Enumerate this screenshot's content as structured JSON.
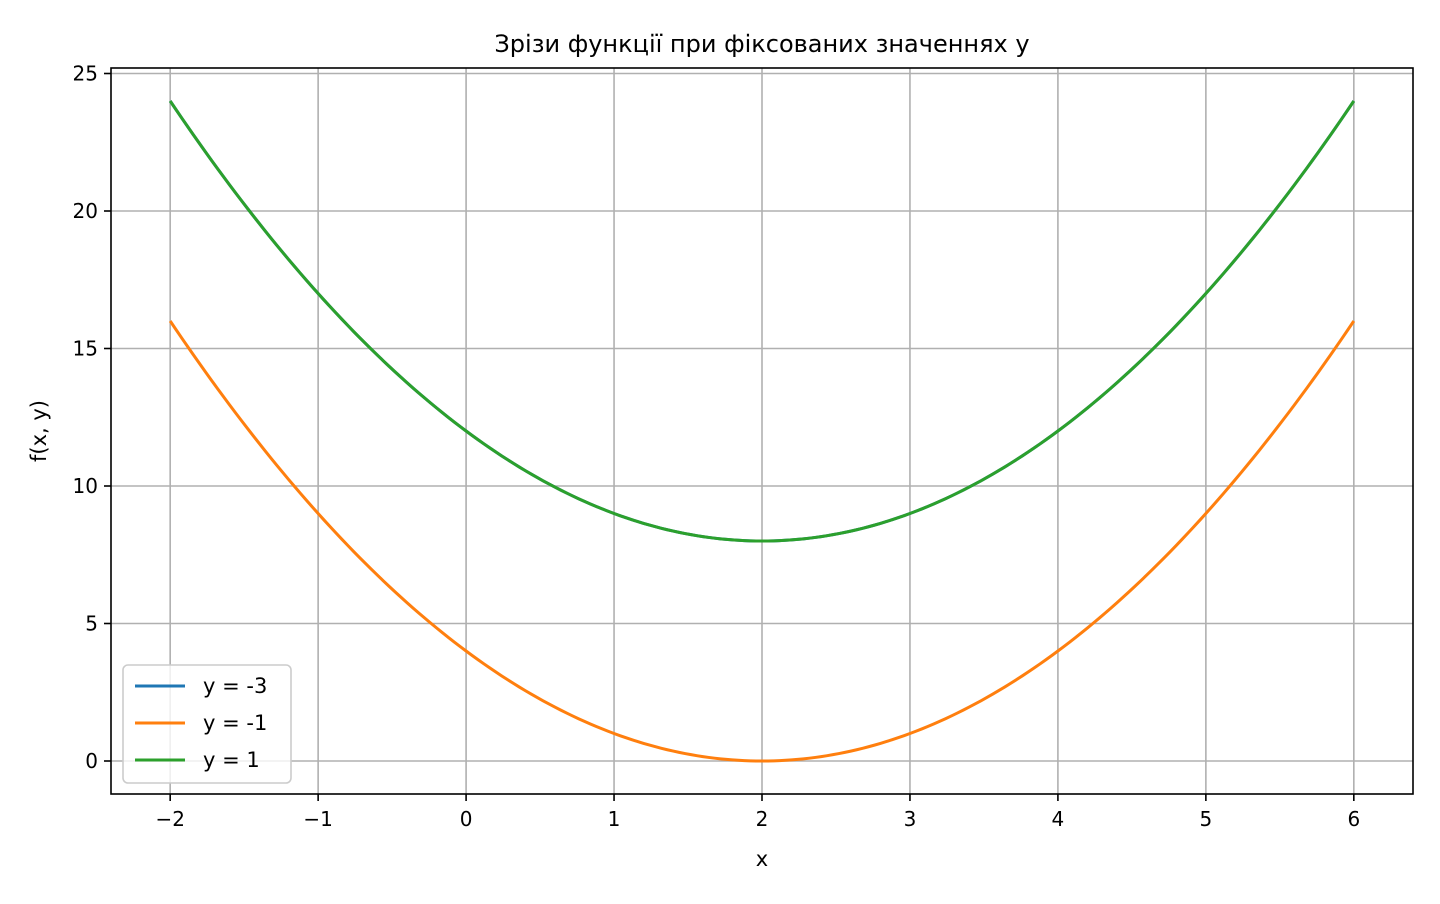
{
  "chart_data": {
    "type": "line",
    "title": "Зрізи функції при фіксованих значеннях y",
    "xlabel": "x",
    "ylabel": "f(x, y)",
    "xlim": [
      -2.4,
      6.4
    ],
    "ylim": [
      -1.2,
      25.2
    ],
    "grid": true,
    "legend_position": "lower-left",
    "x_ticks": [
      -2,
      -1,
      0,
      1,
      2,
      3,
      4,
      5,
      6
    ],
    "x_tick_labels": [
      "−2",
      "−1",
      "0",
      "1",
      "2",
      "3",
      "4",
      "5",
      "6"
    ],
    "y_ticks": [
      0,
      5,
      10,
      15,
      20,
      25
    ],
    "y_tick_labels": [
      "0",
      "5",
      "10",
      "15",
      "20",
      "25"
    ],
    "x": [
      -2,
      -1.5,
      -1,
      -0.5,
      0,
      0.5,
      1,
      1.5,
      2,
      2.5,
      3,
      3.5,
      4,
      4.5,
      5,
      5.5,
      6
    ],
    "series": [
      {
        "name": "y = -3",
        "color": "#1f77b4",
        "values": [
          24,
          20.25,
          17,
          14.25,
          12,
          10.25,
          9,
          8.25,
          8,
          8.25,
          9,
          10.25,
          12,
          14.25,
          17,
          20.25,
          24
        ]
      },
      {
        "name": "y = -1",
        "color": "#ff7f0e",
        "values": [
          16,
          12.25,
          9,
          6.25,
          4,
          2.25,
          1,
          0.25,
          0,
          0.25,
          1,
          2.25,
          4,
          6.25,
          9,
          12.25,
          16
        ]
      },
      {
        "name": "y = 1",
        "color": "#2ca02c",
        "values": [
          24,
          20.25,
          17,
          14.25,
          12,
          10.25,
          9,
          8.25,
          8,
          8.25,
          9,
          10.25,
          12,
          14.25,
          17,
          20.25,
          24
        ]
      }
    ]
  }
}
